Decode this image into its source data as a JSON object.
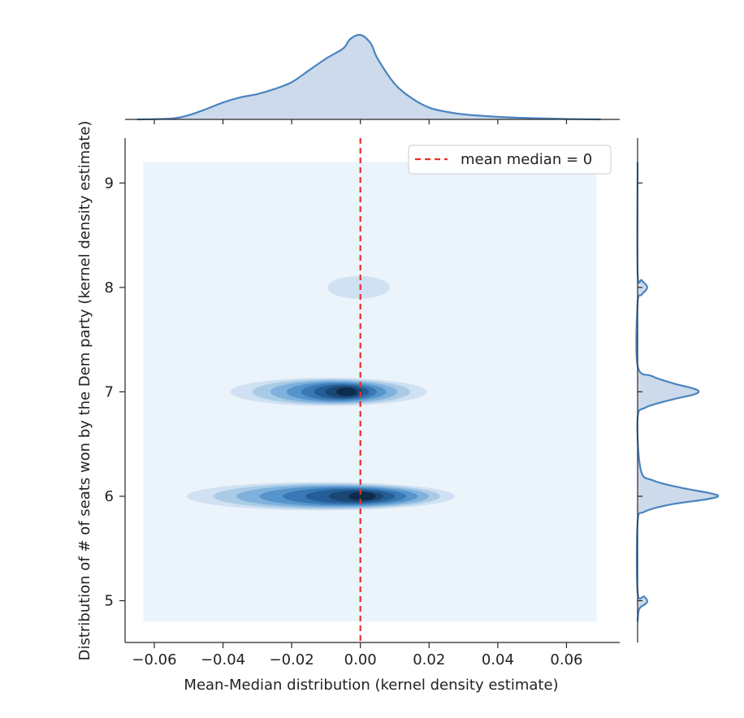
{
  "chart_data": {
    "type": "joint-kde",
    "xlabel": "Mean-Median distribution (kernel density estimate)",
    "ylabel": "Distribution of # of seats won by the Dem party (kernel density estimate)",
    "xlim": [
      -0.0685,
      0.0755
    ],
    "ylim": [
      4.6,
      9.43
    ],
    "x_ticks": [
      -0.06,
      -0.04,
      -0.02,
      0.0,
      0.02,
      0.04,
      0.06
    ],
    "x_tick_labels": [
      "−0.06",
      "−0.04",
      "−0.02",
      "0.00",
      "0.02",
      "0.04",
      "0.06"
    ],
    "y_ticks": [
      5,
      6,
      7,
      8,
      9
    ],
    "y_tick_labels": [
      "5",
      "6",
      "7",
      "8",
      "9"
    ],
    "kde_background_extent": {
      "x": [
        -0.0632,
        0.0688
      ],
      "y": [
        4.8,
        9.2
      ]
    },
    "reference_line": {
      "x": 0.0,
      "label": "mean median = 0",
      "color": "#e8312a",
      "style": "dashed"
    },
    "legend": {
      "location": "upper right",
      "entries": [
        "mean median = 0"
      ]
    },
    "clusters": [
      {
        "y": 6,
        "x_range": [
          -0.0505,
          0.0275
        ],
        "peak_x": 0.0005,
        "level_half_widths": [
          0.039,
          0.033,
          0.028,
          0.023,
          0.018,
          0.013,
          0.008,
          0.004
        ]
      },
      {
        "y": 7,
        "x_range": [
          -0.0375,
          0.019
        ],
        "peak_x": -0.004,
        "level_half_widths": [
          0.0285,
          0.023,
          0.0185,
          0.0145,
          0.011,
          0.008,
          0.0055,
          0.003
        ]
      },
      {
        "y": 8,
        "x_range": [
          -0.0095,
          0.0085
        ],
        "peak_x": -0.0005,
        "level_half_widths": [
          0.009
        ]
      }
    ],
    "top_marginal": {
      "axis": "x",
      "x": [
        -0.065,
        -0.055,
        -0.05,
        -0.045,
        -0.04,
        -0.035,
        -0.03,
        -0.025,
        -0.02,
        -0.015,
        -0.01,
        -0.005,
        -0.003,
        0.0,
        0.003,
        0.005,
        0.01,
        0.015,
        0.02,
        0.025,
        0.03,
        0.04,
        0.05,
        0.06,
        0.07
      ],
      "density": [
        0,
        0.01,
        0.05,
        0.12,
        0.2,
        0.26,
        0.3,
        0.36,
        0.44,
        0.58,
        0.72,
        0.84,
        0.95,
        1.0,
        0.9,
        0.72,
        0.42,
        0.25,
        0.14,
        0.09,
        0.06,
        0.03,
        0.015,
        0.005,
        0
      ]
    },
    "right_marginal": {
      "axis": "y",
      "y": [
        4.8,
        4.92,
        4.97,
        5.0,
        5.04,
        5.08,
        5.75,
        5.85,
        5.92,
        5.97,
        6.0,
        6.03,
        6.08,
        6.15,
        6.25,
        6.75,
        6.85,
        6.93,
        6.97,
        7.0,
        7.03,
        7.08,
        7.15,
        7.25,
        7.85,
        7.93,
        7.97,
        8.0,
        8.03,
        8.07,
        8.15,
        9.2
      ],
      "density": [
        0,
        0.02,
        0.1,
        0.12,
        0.08,
        0,
        0,
        0.08,
        0.4,
        0.85,
        1.0,
        0.9,
        0.55,
        0.2,
        0.04,
        0,
        0.1,
        0.45,
        0.68,
        0.76,
        0.7,
        0.45,
        0.18,
        0,
        0,
        0.05,
        0.1,
        0.12,
        0.1,
        0.05,
        0,
        0
      ]
    }
  }
}
